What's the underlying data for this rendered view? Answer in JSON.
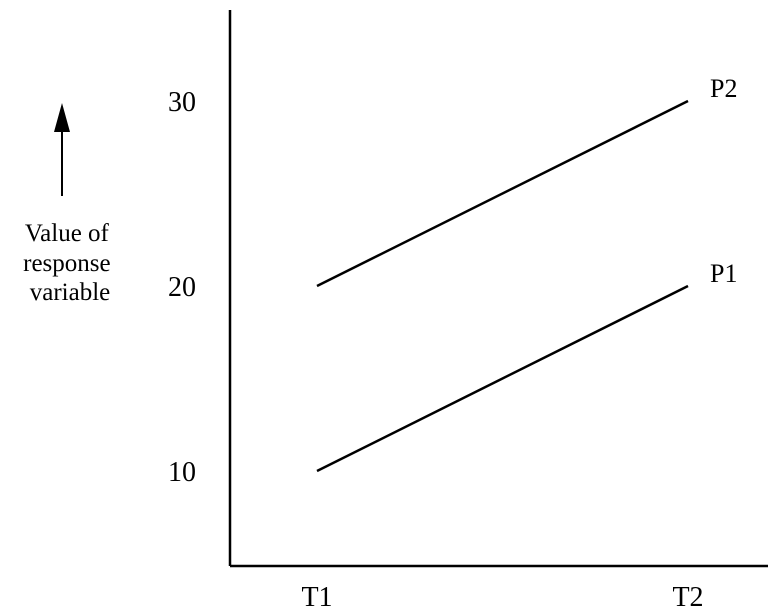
{
  "chart_data": {
    "type": "line",
    "x": [
      "T1",
      "T2"
    ],
    "ylabel": [
      "Value of",
      "response",
      "variable"
    ],
    "yticks": [
      10,
      20,
      30
    ],
    "ylim": [
      5,
      35
    ],
    "grid": false,
    "legend": "none",
    "series": [
      {
        "name": "P1",
        "values": [
          10,
          20
        ],
        "color": "#000000"
      },
      {
        "name": "P2",
        "values": [
          20,
          30
        ],
        "color": "#000000"
      }
    ]
  }
}
